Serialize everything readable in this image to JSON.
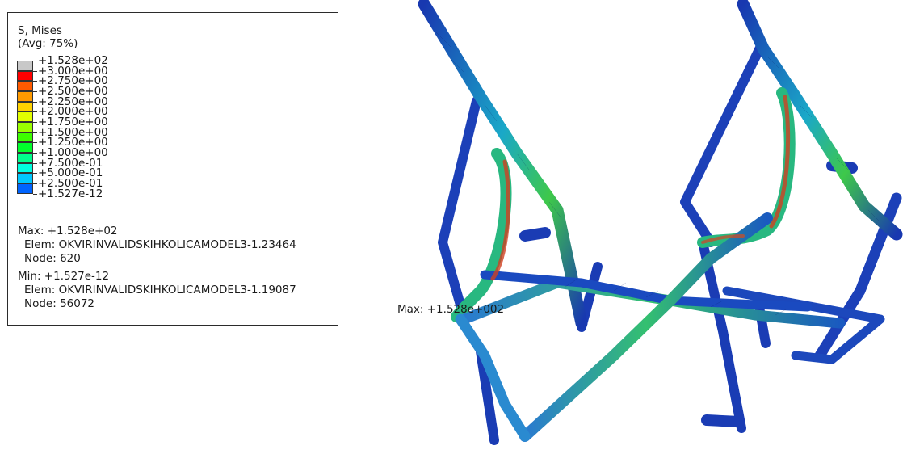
{
  "legend": {
    "variable": "S, Mises",
    "averaging": "(Avg: 75%)",
    "levels": [
      {
        "label": "+1.528e+02",
        "color": "#c8c8c8"
      },
      {
        "label": "+3.000e+00",
        "color": "#ff0000"
      },
      {
        "label": "+2.750e+00",
        "color": "#ff5a00"
      },
      {
        "label": "+2.500e+00",
        "color": "#ff9a00"
      },
      {
        "label": "+2.250e+00",
        "color": "#ffd200"
      },
      {
        "label": "+2.000e+00",
        "color": "#e2ff00"
      },
      {
        "label": "+1.750e+00",
        "color": "#9aff00"
      },
      {
        "label": "+1.500e+00",
        "color": "#3cff00"
      },
      {
        "label": "+1.250e+00",
        "color": "#00ff2c"
      },
      {
        "label": "+1.000e+00",
        "color": "#00ff8c"
      },
      {
        "label": "+7.500e-01",
        "color": "#00ffe0"
      },
      {
        "label": "+5.000e-01",
        "color": "#00c8ff"
      },
      {
        "label": "+2.500e-01",
        "color": "#0064ff"
      },
      {
        "label": "+1.527e-12",
        "color": "#0000ff"
      }
    ],
    "max_value": "Max: +1.528e+02",
    "max_elem": "Elem: OKVIRINVALIDSKIHKOLICAMODEL3-1.23464",
    "max_node": "Node: 620",
    "min_value": "Min: +1.527e-12",
    "min_elem": "Elem: OKVIRINVALIDSKIHKOLICAMODEL3-1.19087",
    "min_node": "Node: 56072"
  },
  "viewport": {
    "max_marker": "Max: +1.528e+002"
  },
  "colors": {
    "tube_base": "#1838b0",
    "tube_mid": "#1aa8c8",
    "tube_high": "#3ec84a",
    "hotspot": "#d04020"
  }
}
